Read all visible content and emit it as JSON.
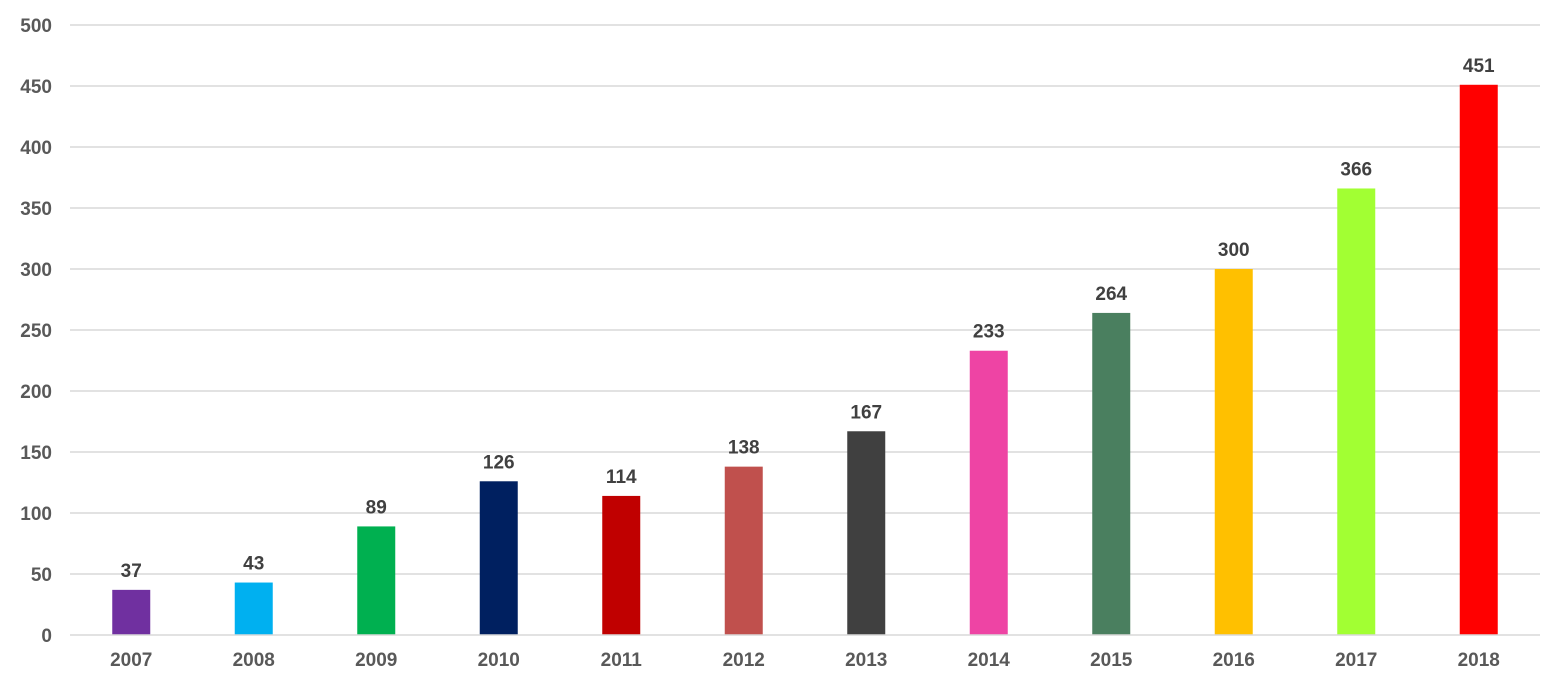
{
  "chart_data": {
    "type": "bar",
    "categories": [
      "2007",
      "2008",
      "2009",
      "2010",
      "2011",
      "2012",
      "2013",
      "2014",
      "2015",
      "2016",
      "2017",
      "2018"
    ],
    "values": [
      37,
      43,
      89,
      126,
      114,
      138,
      167,
      233,
      264,
      300,
      366,
      451
    ],
    "bar_colors": [
      "#7030a0",
      "#00b0f0",
      "#00b050",
      "#002060",
      "#c00000",
      "#c0504d",
      "#404040",
      "#ee44a4",
      "#4a7f5f",
      "#ffc000",
      "#a2ff33",
      "#ff0000"
    ],
    "title": "",
    "xlabel": "",
    "ylabel": "",
    "ylim": [
      0,
      500
    ],
    "yticks": [
      0,
      50,
      100,
      150,
      200,
      250,
      300,
      350,
      400,
      450,
      500
    ],
    "grid": true,
    "legend": "none",
    "data_labels": true
  }
}
